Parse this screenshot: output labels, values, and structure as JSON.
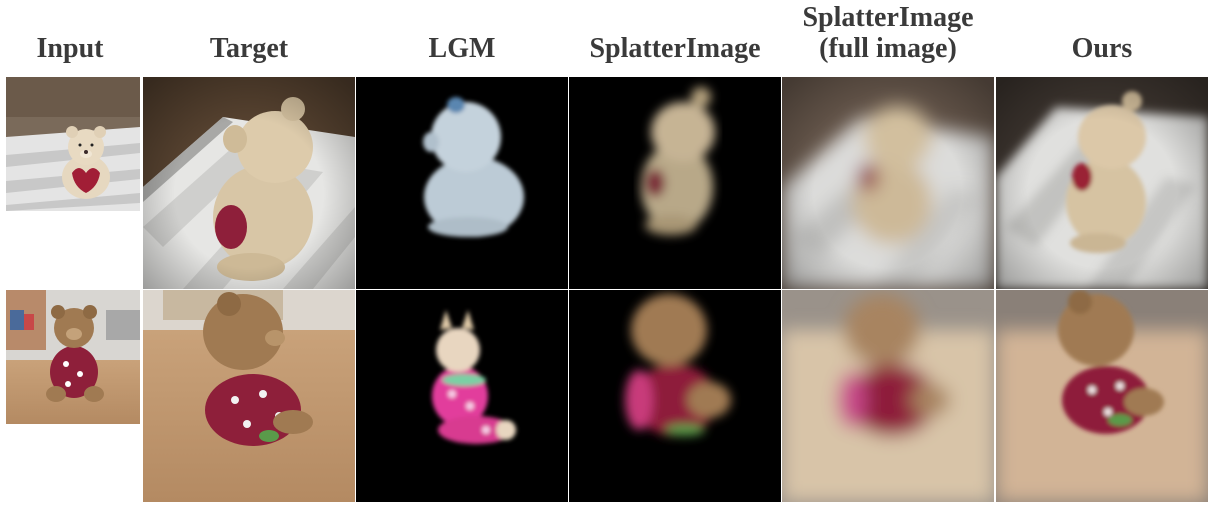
{
  "headers": {
    "input": "Input",
    "target": "Target",
    "lgm": "LGM",
    "splatter": "SplatterImage",
    "splatter_full_line1": "SplatterImage",
    "splatter_full_line2": "(full image)",
    "ours": "Ours"
  },
  "rows": [
    {
      "subject": "teddy bear with heart on striped cloth"
    },
    {
      "subject": "teddy bear in polka-dot pajamas on wooden table"
    }
  ],
  "colors": {
    "bear_tan": "#d8c6a6",
    "bear_brown": "#a07a52",
    "pajama_red": "#8e1f3a",
    "lgm_bear": "#c4d2dc",
    "lgm_pink": "#e23c9c",
    "background_black": "#000000"
  }
}
